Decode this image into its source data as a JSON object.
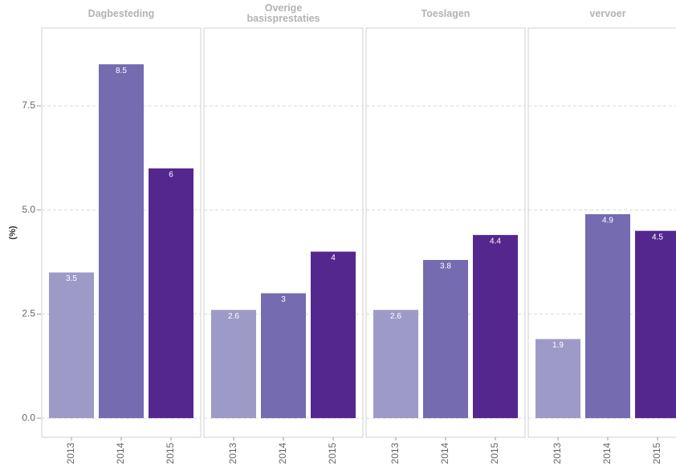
{
  "chart_data": {
    "type": "bar",
    "ylabel": "(%)",
    "categories": [
      "2013",
      "2014",
      "2015"
    ],
    "colors": [
      "#9e9ac8",
      "#756bb1",
      "#54278f"
    ],
    "ylim": [
      -0.46,
      9.37
    ],
    "yticks": [
      {
        "value": 0,
        "label": "0.0"
      },
      2.5,
      {
        "value": 5,
        "label": "5.0"
      },
      7.5
    ],
    "grid": true,
    "facets": [
      {
        "title": "Dagbesteding",
        "values": [
          3.5,
          8.5,
          6
        ]
      },
      {
        "title": "Overige\nbasisprestaties",
        "values": [
          2.6,
          3,
          4
        ]
      },
      {
        "title": "Toeslagen",
        "values": [
          2.6,
          3.8,
          4.4
        ]
      },
      {
        "title": "vervoer",
        "values": [
          1.9,
          4.9,
          4.5
        ]
      }
    ]
  }
}
